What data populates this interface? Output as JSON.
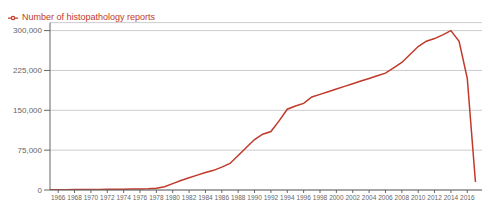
{
  "chart_data": {
    "type": "line",
    "x": [
      1965,
      1966,
      1967,
      1968,
      1969,
      1970,
      1971,
      1972,
      1973,
      1974,
      1975,
      1976,
      1977,
      1978,
      1979,
      1980,
      1981,
      1982,
      1983,
      1984,
      1985,
      1986,
      1987,
      1988,
      1989,
      1990,
      1991,
      1992,
      1993,
      1994,
      1995,
      1996,
      1997,
      1998,
      1999,
      2000,
      2001,
      2002,
      2003,
      2004,
      2005,
      2006,
      2007,
      2008,
      2009,
      2010,
      2011,
      2012,
      2013,
      2014,
      2015,
      2016,
      2017
    ],
    "series": [
      {
        "name": "Number of histopathology reports",
        "color": "#c0392b",
        "values": [
          500,
          600,
          700,
          800,
          900,
          1000,
          1100,
          1200,
          1300,
          1500,
          1700,
          2000,
          2500,
          3500,
          6000,
          12000,
          18000,
          23000,
          28000,
          33000,
          37000,
          43000,
          50000,
          65000,
          80000,
          95000,
          105000,
          110000,
          130000,
          152000,
          158000,
          163000,
          175000,
          180000,
          185000,
          190000,
          195000,
          200000,
          205000,
          210000,
          215000,
          220000,
          230000,
          240000,
          255000,
          270000,
          280000,
          285000,
          292000,
          300000,
          280000,
          210000,
          15000
        ]
      }
    ],
    "xlim": [
      1965.0,
      2017.8
    ],
    "xticks": [
      1966,
      1968,
      1970,
      1972,
      1974,
      1976,
      1978,
      1980,
      1982,
      1984,
      1986,
      1988,
      1990,
      1992,
      1994,
      1996,
      1998,
      2000,
      2002,
      2004,
      2006,
      2008,
      2010,
      2012,
      2014,
      2016
    ],
    "ylim": [
      0,
      315000
    ],
    "yticks": [
      0,
      {
        "value": 75000,
        "label": "75,000"
      },
      {
        "value": 150000,
        "label": "150,000"
      },
      {
        "value": 225000,
        "label": "225,000"
      },
      {
        "value": 300000,
        "label": "300,000"
      }
    ],
    "grid": true,
    "legend": "top left"
  }
}
